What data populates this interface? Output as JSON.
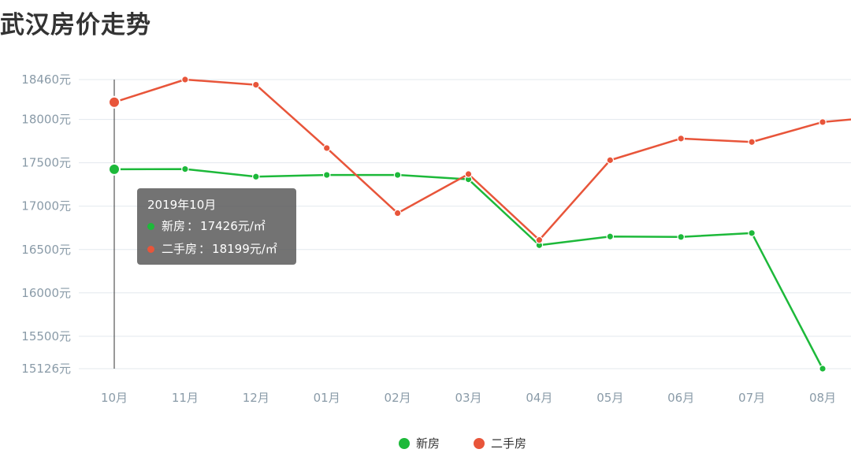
{
  "title": "武汉房价走势",
  "chart_data": {
    "type": "line",
    "title": "武汉房价走势",
    "categories": [
      "10月",
      "11月",
      "12月",
      "01月",
      "02月",
      "03月",
      "04月",
      "05月",
      "06月",
      "07月",
      "08月"
    ],
    "y_ticks": [
      15126,
      15500,
      16000,
      16500,
      17000,
      17500,
      18000,
      18460
    ],
    "y_tick_labels": [
      "15126元",
      "15500元",
      "16000元",
      "16500元",
      "17000元",
      "17500元",
      "18000元",
      "18460元"
    ],
    "ylim": [
      15126,
      18460
    ],
    "grid": true,
    "legend_position": "bottom",
    "series": [
      {
        "name": "新房",
        "color": "#1db93a",
        "values": [
          17426,
          17428,
          17340,
          17360,
          17360,
          17310,
          16550,
          16650,
          16645,
          16690,
          15126
        ]
      },
      {
        "name": "二手房",
        "color": "#e8553a",
        "values": [
          18199,
          18460,
          18400,
          17670,
          16920,
          17370,
          16610,
          17530,
          17780,
          17740,
          17970
        ]
      }
    ],
    "series_tail": [
      null,
      18000
    ]
  },
  "tooltip": {
    "title": "2019年10月",
    "rows": [
      {
        "name": "新房",
        "value": "17426元/㎡",
        "color": "#1db93a"
      },
      {
        "name": "二手房",
        "value": "18199元/㎡",
        "color": "#e8553a"
      }
    ],
    "separator": "："
  },
  "legend": [
    {
      "name": "新房",
      "color": "#1db93a"
    },
    {
      "name": "二手房",
      "color": "#e8553a"
    }
  ],
  "colors": {
    "grid": "#e3e8ee",
    "axis_text": "#8a9ba8",
    "cursor": "#333333"
  }
}
